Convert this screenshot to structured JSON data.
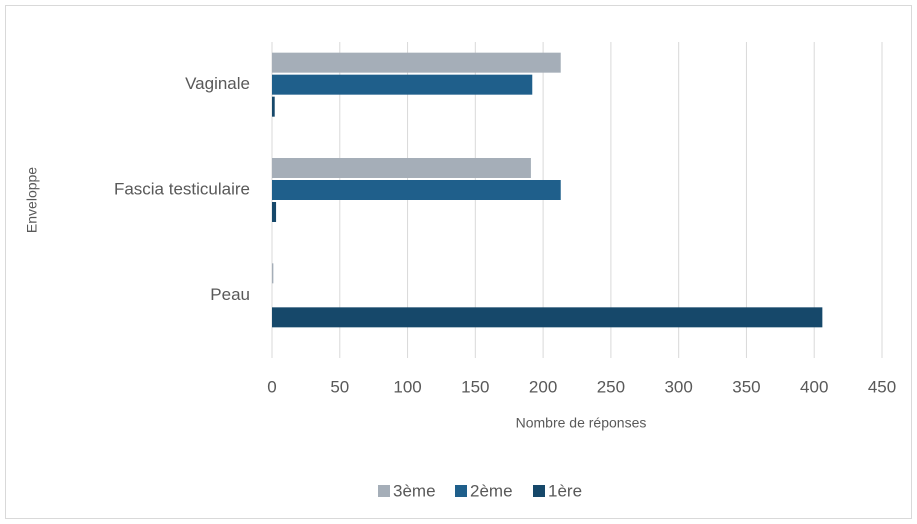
{
  "chart_data": {
    "type": "hbar",
    "x_label": "Nombre de réponses",
    "y_label": "Enveloppe",
    "categories": [
      "Peau",
      "Fascia testiculaire",
      "Vaginale"
    ],
    "series": [
      {
        "name": "3ème",
        "color": "#a5aeb8",
        "values": [
          1,
          191,
          213
        ]
      },
      {
        "name": "2ème",
        "color": "#1f5f8b",
        "values": [
          0,
          213,
          192
        ]
      },
      {
        "name": "1ère",
        "color": "#16486a",
        "values": [
          406,
          3,
          2
        ]
      }
    ],
    "xlim": [
      0,
      450
    ],
    "xticks": [
      0,
      50,
      100,
      150,
      200,
      250,
      300,
      350,
      400,
      450
    ],
    "grid": true,
    "legend": "bottom"
  }
}
